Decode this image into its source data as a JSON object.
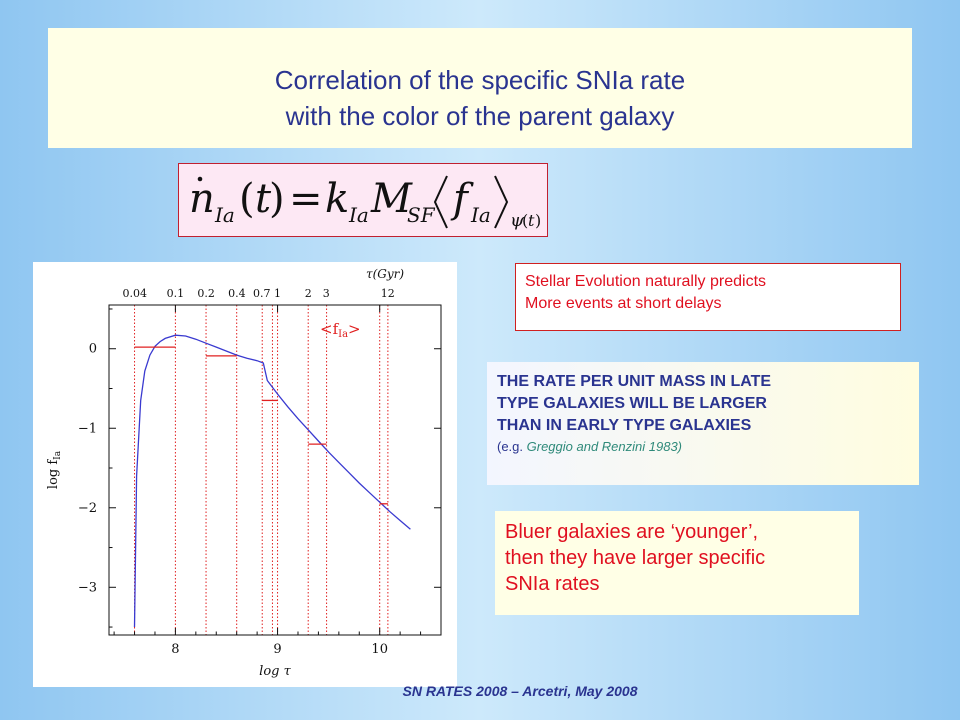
{
  "slide": {
    "title_line1": "Correlation  of the specific SNIa rate",
    "title_line2": "with the color of the parent galaxy",
    "stellar_note": [
      "Stellar Evolution naturally predicts",
      "More events at short delays"
    ],
    "rate_statement": [
      "THE RATE PER UNIT MASS IN LATE",
      "TYPE GALAXIES WILL BE LARGER",
      "THAN IN EARLY TYPE GALAXIES"
    ],
    "rate_ref_prefix": "(e.g. ",
    "rate_ref_text": "Greggio and Renzini 1983)",
    "bluer_note": [
      "Bluer galaxies are ‘younger’,",
      "then they have larger specific",
      "SNIa rates"
    ],
    "footer": "SN RATES 2008 – Arcetri, May 2008",
    "formula_text": "ṅIa(t) = kIa MSF ⟨fIa⟩ψ(t)",
    "formula_sym": {
      "n": "n",
      "Ia": "Ia",
      "t": "t",
      "eq": "=",
      "k": "k",
      "M": "M",
      "SF": "SF",
      "f": "f",
      "psi": "ψ",
      "lp": "(",
      "rp": ")"
    },
    "colors": {
      "title": "#2a3490",
      "accent_red": "#e01020",
      "curve": "#3a3ad0",
      "marker": "#e02020"
    }
  },
  "chart_data": {
    "type": "line",
    "title": "",
    "xlabel": "log τ",
    "ylabel": "log f",
    "ylabel_sub": "Ia",
    "top_axis_label": "τ(Gyr)",
    "xlim": [
      7.35,
      10.6
    ],
    "ylim": [
      -3.6,
      0.55
    ],
    "x_ticks": [
      8,
      9,
      10
    ],
    "y_ticks": [
      0,
      -1,
      -2,
      -3
    ],
    "y_tick_labels": [
      "0",
      "−1",
      "−2",
      "−3"
    ],
    "top_ticks": [
      {
        "label": "0.04",
        "value": 0.04
      },
      {
        "label": "0.1",
        "value": 0.1
      },
      {
        "label": "0.2",
        "value": 0.2
      },
      {
        "label": "0.4",
        "value": 0.4
      },
      {
        "label": "0.7",
        "value": 0.7
      },
      {
        "label": "1",
        "value": 1
      },
      {
        "label": "2",
        "value": 2
      },
      {
        "label": "3",
        "value": 3
      },
      {
        "label": "12",
        "value": 12
      }
    ],
    "legend_label": "<f",
    "legend_sub": "Ia",
    "legend_close": ">",
    "legend_position": "top-right",
    "series": [
      {
        "x": [
          7.6,
          7.62,
          7.66,
          7.7,
          7.75,
          7.8,
          7.85,
          7.9,
          8.0,
          8.1,
          8.2,
          8.3,
          8.4,
          8.5,
          8.6,
          8.7,
          8.8,
          8.86,
          8.9,
          9.0,
          9.1,
          9.2,
          9.3,
          9.4,
          9.5,
          9.6,
          9.7,
          9.8,
          9.9,
          10.0,
          10.1,
          10.2,
          10.3
        ],
        "y": [
          -3.5,
          -1.6,
          -0.65,
          -0.28,
          -0.08,
          0.03,
          0.09,
          0.13,
          0.17,
          0.16,
          0.12,
          0.07,
          0.02,
          -0.03,
          -0.08,
          -0.12,
          -0.15,
          -0.18,
          -0.4,
          -0.57,
          -0.73,
          -0.88,
          -1.02,
          -1.16,
          -1.3,
          -1.43,
          -1.56,
          -1.69,
          -1.81,
          -1.93,
          -2.05,
          -2.16,
          -2.27
        ]
      }
    ],
    "bins": [
      {
        "x0": 7.6,
        "x1": 8.0,
        "y": 0.02
      },
      {
        "x0": 8.3,
        "x1": 8.6,
        "y": -0.09
      },
      {
        "x0": 8.85,
        "x1": 9.0,
        "y": -0.65
      },
      {
        "x0": 9.3,
        "x1": 9.48,
        "y": -1.2
      },
      {
        "x0": 10.0,
        "x1": 10.08,
        "y": -1.95
      }
    ],
    "vlines": [
      7.6,
      8.0,
      8.3,
      8.6,
      8.85,
      8.95,
      9.0,
      9.3,
      9.48,
      10.0,
      10.08
    ],
    "grid": false
  }
}
